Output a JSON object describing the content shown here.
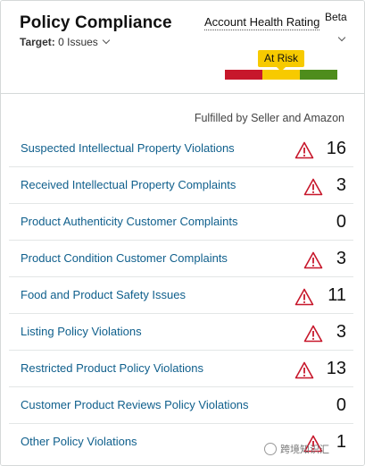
{
  "header": {
    "title": "Policy Compliance",
    "target_label": "Target:",
    "target_value": " 0 Issues",
    "health_label": "Account Health Rating",
    "beta": "Beta",
    "status": "At Risk",
    "colors": {
      "bad": "#c7172b",
      "warn": "#f7ca00",
      "good": "#4e8d1c",
      "link": "#0f5f8c"
    }
  },
  "content": {
    "fulfilled_label": "Fulfilled by Seller and Amazon",
    "rows": [
      {
        "label": "Suspected Intellectual Property Violations",
        "count": "16",
        "warning": true
      },
      {
        "label": "Received Intellectual Property Complaints",
        "count": "3",
        "warning": true
      },
      {
        "label": "Product Authenticity Customer Complaints",
        "count": "0",
        "warning": false
      },
      {
        "label": "Product Condition Customer Complaints",
        "count": "3",
        "warning": true
      },
      {
        "label": "Food and Product Safety Issues",
        "count": "11",
        "warning": true
      },
      {
        "label": "Listing Policy Violations",
        "count": "3",
        "warning": true
      },
      {
        "label": "Restricted Product Policy Violations",
        "count": "13",
        "warning": true
      },
      {
        "label": "Customer Product Reviews Policy Violations",
        "count": "0",
        "warning": false
      },
      {
        "label": "Other Policy Violations",
        "count": "1",
        "warning": true
      }
    ]
  },
  "watermark": "跨境知识汇"
}
